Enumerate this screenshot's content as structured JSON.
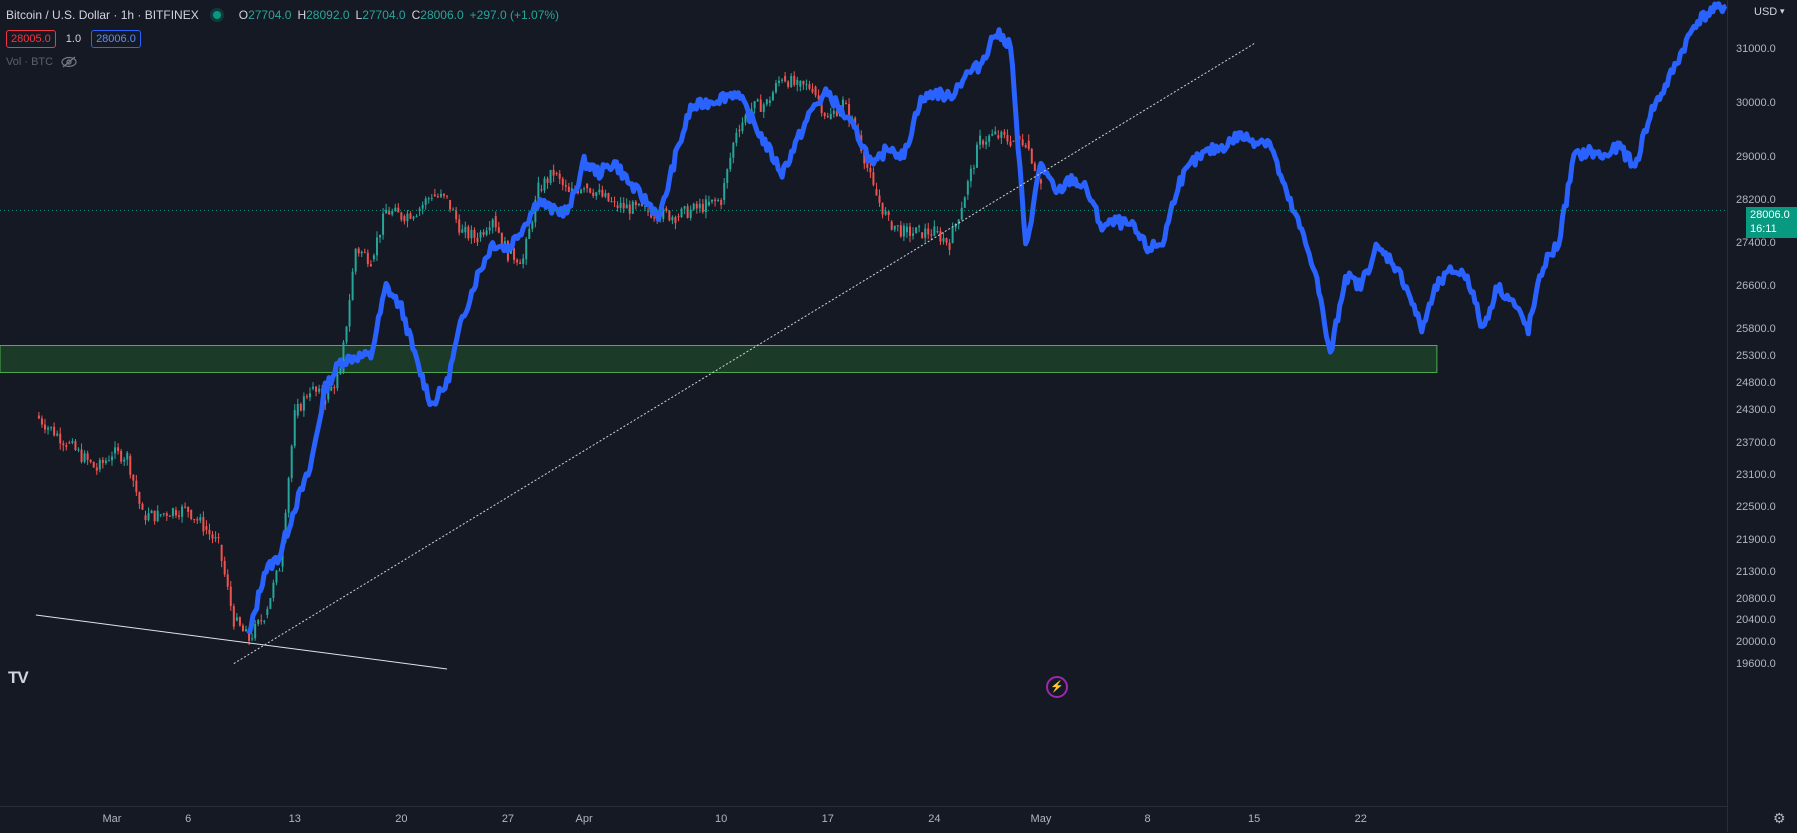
{
  "legend": {
    "symbol": "Bitcoin / U.S. Dollar · 1h · BITFINEX",
    "open_label": "O",
    "open": "27704.0",
    "high_label": "H",
    "high": "28092.0",
    "low_label": "L",
    "low": "27704.0",
    "close_label": "C",
    "close": "28006.0",
    "change": "+297.0 (+1.07%)",
    "bid": "28005.0",
    "spread": "1.0",
    "ask": "28006.0",
    "volume_label": "Vol · BTC",
    "volume_icon": "eye-crossed-icon"
  },
  "price_axis": {
    "currency": "USD",
    "last_price": "28006.0",
    "countdown": "16:11"
  },
  "logo": "TV",
  "alert_icon": "lightning-icon",
  "settings_icon": "gear-icon",
  "colors": {
    "background": "#151924",
    "up": "#26a69a",
    "down": "#ef5350",
    "overlay": "#2962ff",
    "zone_fill": "#1b3a28",
    "zone_border": "#4caf50",
    "last_price": "#089981"
  },
  "chart_data": {
    "type": "line",
    "title": "Bitcoin / U.S. Dollar · 1h · BITFINEX",
    "y_ticks": [
      31000,
      30000,
      29000,
      28200,
      27400,
      26600,
      25800,
      25300,
      24800,
      24300,
      23700,
      23100,
      22500,
      21900,
      21300,
      20800,
      20400,
      20000,
      19600
    ],
    "y_tick_labels": [
      "31000.0",
      "30000.0",
      "29000.0",
      "28200.0",
      "27400.0",
      "26600.0",
      "25800.0",
      "25300.0",
      "24800.0",
      "24300.0",
      "23700.0",
      "23100.0",
      "22500.0",
      "21900.0",
      "21300.0",
      "20800.0",
      "20400.0",
      "20000.0",
      "19600.0"
    ],
    "x_ticks": [
      "Mar",
      "6",
      "13",
      "20",
      "27",
      "Apr",
      "10",
      "17",
      "24",
      "May",
      "8",
      "15",
      "22"
    ],
    "x_tick_dates": [
      "2023-03-01",
      "2023-03-06",
      "2023-03-13",
      "2023-03-20",
      "2023-03-27",
      "2023-04-01",
      "2023-04-10",
      "2023-04-17",
      "2023-04-24",
      "2023-05-01",
      "2023-05-08",
      "2023-05-15",
      "2023-05-22"
    ],
    "last_price": 28006.0,
    "series": [
      {
        "kind": "candles",
        "points": [
          {
            "x": "2023-02-24",
            "y": 24200
          },
          {
            "x": "2023-02-26",
            "y": 23700
          },
          {
            "x": "2023-02-28",
            "y": 23200
          },
          {
            "x": "2023-03-01",
            "y": 23500
          },
          {
            "x": "2023-03-02",
            "y": 23450
          },
          {
            "x": "2023-03-03",
            "y": 22350
          },
          {
            "x": "2023-03-04",
            "y": 22350
          },
          {
            "x": "2023-03-05",
            "y": 22450
          },
          {
            "x": "2023-03-06",
            "y": 22450
          },
          {
            "x": "2023-03-07",
            "y": 22150
          },
          {
            "x": "2023-03-08",
            "y": 21800
          },
          {
            "x": "2023-03-09",
            "y": 20400
          },
          {
            "x": "2023-03-10",
            "y": 20050
          },
          {
            "x": "2023-03-11",
            "y": 20500
          },
          {
            "x": "2023-03-12",
            "y": 21400
          },
          {
            "x": "2023-03-13",
            "y": 24200
          },
          {
            "x": "2023-03-14",
            "y": 24700
          },
          {
            "x": "2023-03-15",
            "y": 24500
          },
          {
            "x": "2023-03-16",
            "y": 25000
          },
          {
            "x": "2023-03-17",
            "y": 27300
          },
          {
            "x": "2023-03-18",
            "y": 27100
          },
          {
            "x": "2023-03-19",
            "y": 28000
          },
          {
            "x": "2023-03-20",
            "y": 27900
          },
          {
            "x": "2023-03-21",
            "y": 28000
          },
          {
            "x": "2023-03-22",
            "y": 28300
          },
          {
            "x": "2023-03-23",
            "y": 28200
          },
          {
            "x": "2023-03-24",
            "y": 27600
          },
          {
            "x": "2023-03-25",
            "y": 27500
          },
          {
            "x": "2023-03-26",
            "y": 27900
          },
          {
            "x": "2023-03-27",
            "y": 27200
          },
          {
            "x": "2023-03-28",
            "y": 27100
          },
          {
            "x": "2023-03-29",
            "y": 28400
          },
          {
            "x": "2023-03-30",
            "y": 28700
          },
          {
            "x": "2023-03-31",
            "y": 28300
          },
          {
            "x": "2023-04-01",
            "y": 28500
          },
          {
            "x": "2023-04-03",
            "y": 28100
          },
          {
            "x": "2023-04-05",
            "y": 28000
          },
          {
            "x": "2023-04-07",
            "y": 27900
          },
          {
            "x": "2023-04-09",
            "y": 28100
          },
          {
            "x": "2023-04-10",
            "y": 28200
          },
          {
            "x": "2023-04-11",
            "y": 29500
          },
          {
            "x": "2023-04-12",
            "y": 29900
          },
          {
            "x": "2023-04-13",
            "y": 30000
          },
          {
            "x": "2023-04-14",
            "y": 30500
          },
          {
            "x": "2023-04-15",
            "y": 30300
          },
          {
            "x": "2023-04-16",
            "y": 30300
          },
          {
            "x": "2023-04-17",
            "y": 29700
          },
          {
            "x": "2023-04-18",
            "y": 30000
          },
          {
            "x": "2023-04-19",
            "y": 29400
          },
          {
            "x": "2023-04-20",
            "y": 28400
          },
          {
            "x": "2023-04-21",
            "y": 27800
          },
          {
            "x": "2023-04-22",
            "y": 27600
          },
          {
            "x": "2023-04-23",
            "y": 27600
          },
          {
            "x": "2023-04-24",
            "y": 27600
          },
          {
            "x": "2023-04-25",
            "y": 27400
          },
          {
            "x": "2023-04-26",
            "y": 28300
          },
          {
            "x": "2023-04-27",
            "y": 29300
          },
          {
            "x": "2023-04-28",
            "y": 29400
          },
          {
            "x": "2023-04-29",
            "y": 29300
          },
          {
            "x": "2023-04-30",
            "y": 29300
          },
          {
            "x": "2023-05-01",
            "y": 28500
          }
        ]
      },
      {
        "kind": "overlay",
        "points": [
          {
            "x": "2023-03-10",
            "y": 20100
          },
          {
            "x": "2023-03-11",
            "y": 21300
          },
          {
            "x": "2023-03-12",
            "y": 21600
          },
          {
            "x": "2023-03-13",
            "y": 22500
          },
          {
            "x": "2023-03-14",
            "y": 23200
          },
          {
            "x": "2023-03-15",
            "y": 24700
          },
          {
            "x": "2023-03-16",
            "y": 25200
          },
          {
            "x": "2023-03-17",
            "y": 25300
          },
          {
            "x": "2023-03-18",
            "y": 25300
          },
          {
            "x": "2023-03-19",
            "y": 26600
          },
          {
            "x": "2023-03-20",
            "y": 26200
          },
          {
            "x": "2023-03-21",
            "y": 25200
          },
          {
            "x": "2023-03-22",
            "y": 24400
          },
          {
            "x": "2023-03-23",
            "y": 24800
          },
          {
            "x": "2023-03-24",
            "y": 26000
          },
          {
            "x": "2023-03-25",
            "y": 26800
          },
          {
            "x": "2023-03-26",
            "y": 27400
          },
          {
            "x": "2023-03-27",
            "y": 27300
          },
          {
            "x": "2023-03-28",
            "y": 27700
          },
          {
            "x": "2023-03-29",
            "y": 28200
          },
          {
            "x": "2023-03-30",
            "y": 28000
          },
          {
            "x": "2023-03-31",
            "y": 28000
          },
          {
            "x": "2023-04-01",
            "y": 28900
          },
          {
            "x": "2023-04-02",
            "y": 28700
          },
          {
            "x": "2023-04-03",
            "y": 28900
          },
          {
            "x": "2023-04-04",
            "y": 28500
          },
          {
            "x": "2023-04-05",
            "y": 28200
          },
          {
            "x": "2023-04-06",
            "y": 27900
          },
          {
            "x": "2023-04-07",
            "y": 29000
          },
          {
            "x": "2023-04-08",
            "y": 29900
          },
          {
            "x": "2023-04-09",
            "y": 30000
          },
          {
            "x": "2023-04-10",
            "y": 30100
          },
          {
            "x": "2023-04-11",
            "y": 30200
          },
          {
            "x": "2023-04-12",
            "y": 29700
          },
          {
            "x": "2023-04-13",
            "y": 29200
          },
          {
            "x": "2023-04-14",
            "y": 28700
          },
          {
            "x": "2023-04-15",
            "y": 29300
          },
          {
            "x": "2023-04-16",
            "y": 29900
          },
          {
            "x": "2023-04-17",
            "y": 30200
          },
          {
            "x": "2023-04-18",
            "y": 29800
          },
          {
            "x": "2023-04-19",
            "y": 29400
          },
          {
            "x": "2023-04-20",
            "y": 28800
          },
          {
            "x": "2023-04-21",
            "y": 29200
          },
          {
            "x": "2023-04-22",
            "y": 29000
          },
          {
            "x": "2023-04-23",
            "y": 30000
          },
          {
            "x": "2023-04-24",
            "y": 30200
          },
          {
            "x": "2023-04-25",
            "y": 30100
          },
          {
            "x": "2023-04-26",
            "y": 30500
          },
          {
            "x": "2023-04-27",
            "y": 30700
          },
          {
            "x": "2023-04-28",
            "y": 31300
          },
          {
            "x": "2023-04-29",
            "y": 31100
          },
          {
            "x": "2023-04-30",
            "y": 27300
          },
          {
            "x": "2023-05-01",
            "y": 28900
          },
          {
            "x": "2023-05-02",
            "y": 28300
          },
          {
            "x": "2023-05-03",
            "y": 28600
          },
          {
            "x": "2023-05-04",
            "y": 28400
          },
          {
            "x": "2023-05-05",
            "y": 27700
          },
          {
            "x": "2023-05-06",
            "y": 27800
          },
          {
            "x": "2023-05-07",
            "y": 27700
          },
          {
            "x": "2023-05-08",
            "y": 27300
          },
          {
            "x": "2023-05-09",
            "y": 27400
          },
          {
            "x": "2023-05-10",
            "y": 28500
          },
          {
            "x": "2023-05-11",
            "y": 28900
          },
          {
            "x": "2023-05-12",
            "y": 29100
          },
          {
            "x": "2023-05-13",
            "y": 29200
          },
          {
            "x": "2023-05-14",
            "y": 29400
          },
          {
            "x": "2023-05-15",
            "y": 29300
          },
          {
            "x": "2023-05-16",
            "y": 29300
          },
          {
            "x": "2023-05-17",
            "y": 28400
          },
          {
            "x": "2023-05-18",
            "y": 27700
          },
          {
            "x": "2023-05-19",
            "y": 26900
          },
          {
            "x": "2023-05-20",
            "y": 25300
          },
          {
            "x": "2023-05-21",
            "y": 26800
          },
          {
            "x": "2023-05-22",
            "y": 26600
          },
          {
            "x": "2023-05-23",
            "y": 27300
          },
          {
            "x": "2023-05-24",
            "y": 27100
          },
          {
            "x": "2023-05-25",
            "y": 26600
          },
          {
            "x": "2023-05-26",
            "y": 25800
          },
          {
            "x": "2023-05-27",
            "y": 26600
          },
          {
            "x": "2023-05-28",
            "y": 26900
          },
          {
            "x": "2023-05-29",
            "y": 26800
          },
          {
            "x": "2023-05-30",
            "y": 25800
          },
          {
            "x": "2023-05-31",
            "y": 26600
          },
          {
            "x": "2023-06-01",
            "y": 26300
          },
          {
            "x": "2023-06-02",
            "y": 25800
          },
          {
            "x": "2023-06-03",
            "y": 27000
          },
          {
            "x": "2023-06-04",
            "y": 27400
          },
          {
            "x": "2023-06-05",
            "y": 29000
          },
          {
            "x": "2023-06-06",
            "y": 29100
          },
          {
            "x": "2023-06-07",
            "y": 29000
          },
          {
            "x": "2023-06-08",
            "y": 29200
          },
          {
            "x": "2023-06-09",
            "y": 28800
          },
          {
            "x": "2023-06-10",
            "y": 29800
          },
          {
            "x": "2023-06-11",
            "y": 30300
          },
          {
            "x": "2023-06-12",
            "y": 30900
          },
          {
            "x": "2023-06-13",
            "y": 31500
          },
          {
            "x": "2023-06-14",
            "y": 31700
          },
          {
            "x": "2023-06-15",
            "y": 31800
          }
        ]
      }
    ],
    "support_zone": {
      "y_low": 25000,
      "y_high": 25500,
      "x_end": "2023-05-27"
    },
    "trendlines": [
      {
        "style": "solid",
        "from": {
          "x": "2023-02-24",
          "y": 20500
        },
        "to": {
          "x": "2023-03-23",
          "y": 19500
        }
      },
      {
        "style": "dotted",
        "from": {
          "x": "2023-03-09",
          "y": 19600
        },
        "to": {
          "x": "2023-05-15",
          "y": 31100
        }
      }
    ]
  }
}
